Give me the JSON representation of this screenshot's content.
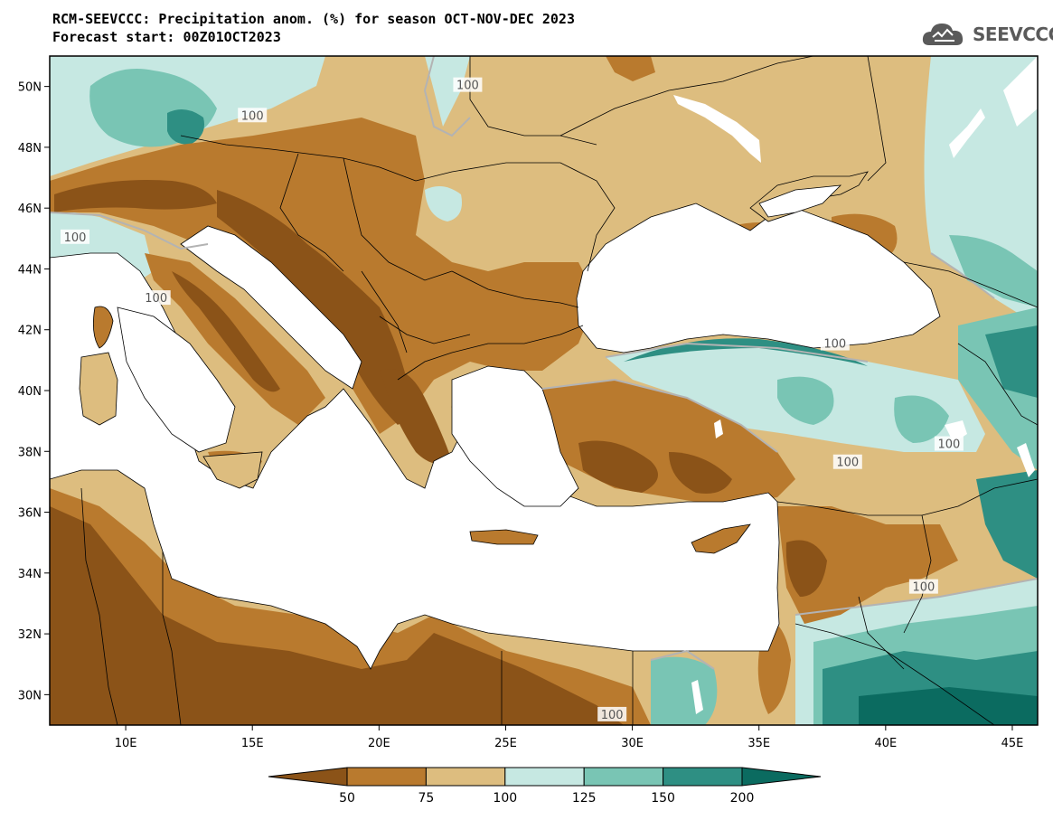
{
  "title_line1": "RCM-SEEVCCC: Precipitation anom. (%) for season OCT-NOV-DEC 2023",
  "title_line2": "Forecast start: 00Z01OCT2023",
  "logo_text": "SEEVCCC",
  "axes": {
    "lat_labels": [
      "50N",
      "48N",
      "46N",
      "44N",
      "42N",
      "40N",
      "38N",
      "36N",
      "34N",
      "32N",
      "30N"
    ],
    "lon_labels": [
      "10E",
      "15E",
      "20E",
      "25E",
      "30E",
      "35E",
      "40E",
      "45E"
    ],
    "lon_range": [
      7,
      46
    ],
    "lat_range": [
      29,
      51
    ]
  },
  "colorbar": {
    "labels": [
      "50",
      "75",
      "100",
      "125",
      "150",
      "200"
    ],
    "colors": [
      "#8b5318",
      "#b97a2e",
      "#ddbd7f",
      "#c6e8e2",
      "#79c5b4",
      "#2e8f83",
      "#0b6b60"
    ]
  },
  "contour_labels": [
    "100",
    "100",
    "100",
    "100",
    "100",
    "100",
    "100",
    "100",
    "100"
  ],
  "colors": {
    "land_default": "#ddbd7f",
    "sea": "#ffffff",
    "border": "#000000",
    "contour": "#b3b3b3"
  }
}
